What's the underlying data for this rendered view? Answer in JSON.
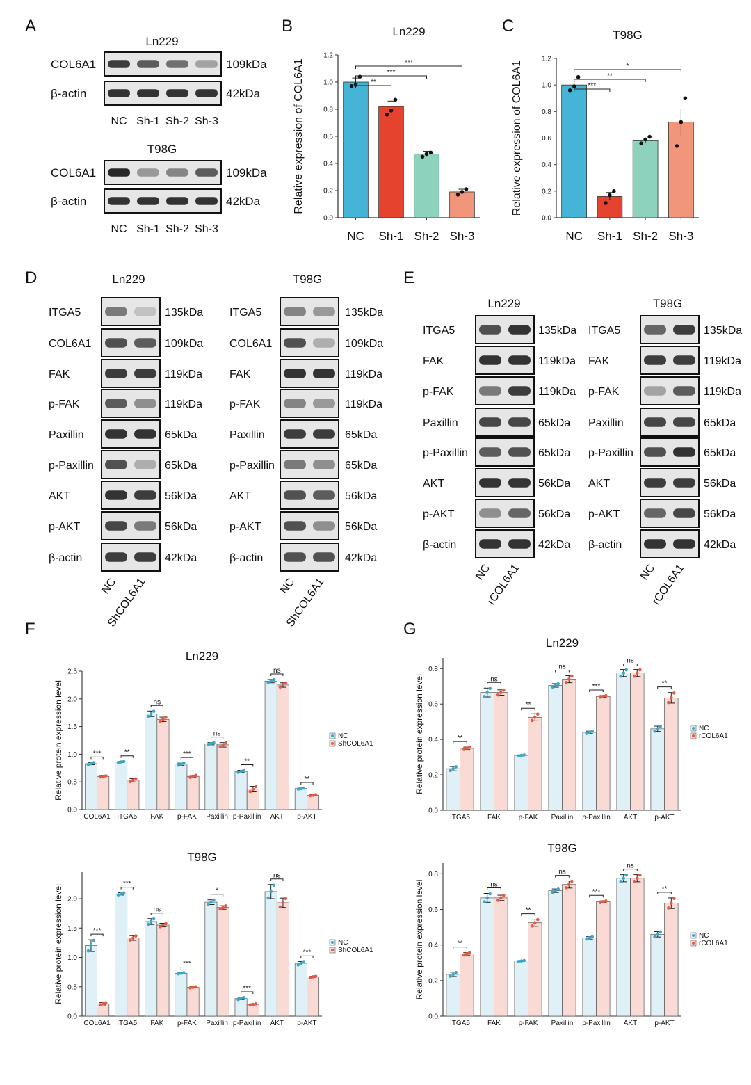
{
  "colors": {
    "nc": "#44b5d6",
    "sh1": "#e5432e",
    "sh2": "#8dd2bd",
    "sh3": "#f2967b",
    "nc_light": "#dff0f6",
    "nc_dot": "#3aa7c9",
    "treat_light": "#f9dad4",
    "treat_dot": "#e25a45",
    "axis": "#333333",
    "band": "#1e1e1e"
  },
  "panel_letters": [
    "A",
    "B",
    "C",
    "D",
    "E",
    "F",
    "G"
  ],
  "panel_A": {
    "blots": [
      {
        "cell": "Ln229",
        "rows": [
          {
            "label": "COL6A1",
            "size": "109kDa",
            "bands": [
              0.85,
              0.7,
              0.6,
              0.35
            ]
          },
          {
            "label": "β-actin",
            "size": "42kDa",
            "bands": [
              0.9,
              0.9,
              0.9,
              0.9
            ]
          }
        ],
        "lanes": [
          "NC",
          "Sh-1",
          "Sh-2",
          "Sh-3"
        ]
      },
      {
        "cell": "T98G",
        "rows": [
          {
            "label": "COL6A1",
            "size": "109kDa",
            "bands": [
              0.95,
              0.4,
              0.5,
              0.7
            ]
          },
          {
            "label": "β-actin",
            "size": "42kDa",
            "bands": [
              0.9,
              0.9,
              0.9,
              0.9
            ]
          }
        ],
        "lanes": [
          "NC",
          "Sh-1",
          "Sh-2",
          "Sh-3"
        ]
      }
    ]
  },
  "panel_D": {
    "rows": [
      "ITGA5",
      "COL6A1",
      "FAK",
      "p-FAK",
      "Paxillin",
      "p-Paxillin",
      "AKT",
      "p-AKT",
      "β-actin"
    ],
    "sizes": [
      "135kDa",
      "109kDa",
      "119kDa",
      "119kDa",
      "65kDa",
      "65kDa",
      "56kDa",
      "56kDa",
      "42kDa"
    ],
    "lanes": [
      "NC",
      "ShCOL6A1"
    ],
    "blots": [
      {
        "cell": "Ln229",
        "bands": [
          [
            0.55,
            0.2
          ],
          [
            0.75,
            0.7
          ],
          [
            0.85,
            0.85
          ],
          [
            0.7,
            0.45
          ],
          [
            0.9,
            0.9
          ],
          [
            0.75,
            0.3
          ],
          [
            0.9,
            0.85
          ],
          [
            0.8,
            0.55
          ],
          [
            0.85,
            0.85
          ]
        ]
      },
      {
        "cell": "T98G",
        "bands": [
          [
            0.5,
            0.4
          ],
          [
            0.75,
            0.3
          ],
          [
            0.9,
            0.9
          ],
          [
            0.5,
            0.4
          ],
          [
            0.85,
            0.85
          ],
          [
            0.55,
            0.45
          ],
          [
            0.75,
            0.7
          ],
          [
            0.75,
            0.45
          ],
          [
            0.75,
            0.75
          ]
        ]
      }
    ]
  },
  "panel_F": {
    "rows": [
      "ITGA5",
      "FAK",
      "p-FAK",
      "Paxillin",
      "p-Paxillin",
      "AKT",
      "p-AKT",
      "β-actin"
    ],
    "sizes": [
      "135kDa",
      "119kDa",
      "119kDa",
      "65kDa",
      "65kDa",
      "56kDa",
      "56kDa",
      "42kDa"
    ],
    "lanes": [
      "NC",
      "rCOL6A1"
    ],
    "blots": [
      {
        "cell": "Ln229",
        "bands": [
          [
            0.75,
            0.9
          ],
          [
            0.9,
            0.9
          ],
          [
            0.55,
            0.85
          ],
          [
            0.8,
            0.8
          ],
          [
            0.7,
            0.75
          ],
          [
            0.9,
            0.9
          ],
          [
            0.45,
            0.65
          ],
          [
            0.9,
            0.9
          ]
        ]
      },
      {
        "cell": "T98G",
        "bands": [
          [
            0.65,
            0.85
          ],
          [
            0.85,
            0.85
          ],
          [
            0.35,
            0.7
          ],
          [
            0.8,
            0.8
          ],
          [
            0.75,
            0.9
          ],
          [
            0.85,
            0.85
          ],
          [
            0.65,
            0.8
          ],
          [
            0.9,
            0.9
          ]
        ]
      }
    ]
  },
  "chart_data": [
    {
      "id": "B",
      "type": "bar",
      "title": "Ln229",
      "ylabel": "Relative expression of COL6A1",
      "xlabel": "",
      "categories": [
        "NC",
        "Sh-1",
        "Sh-2",
        "Sh-3"
      ],
      "values": [
        1.0,
        0.82,
        0.47,
        0.19
      ],
      "errors": [
        0.03,
        0.04,
        0.02,
        0.02
      ],
      "points": [
        [
          0.97,
          0.98,
          1.04
        ],
        [
          0.76,
          0.79,
          0.87
        ],
        [
          0.45,
          0.47,
          0.48
        ],
        [
          0.17,
          0.19,
          0.21
        ]
      ],
      "ylim": [
        0,
        1.2
      ],
      "yticks": [
        0.0,
        0.2,
        0.4,
        0.6,
        0.8,
        1.0,
        1.2
      ],
      "brackets": [
        {
          "from": 0,
          "to": 1,
          "label": "**"
        },
        {
          "from": 0,
          "to": 2,
          "label": "***"
        },
        {
          "from": 0,
          "to": 3,
          "label": "***"
        }
      ]
    },
    {
      "id": "C",
      "type": "bar",
      "title": "T98G",
      "ylabel": "Relative expression of COL6A1",
      "xlabel": "",
      "categories": [
        "NC",
        "Sh-1",
        "Sh-2",
        "Sh-3"
      ],
      "values": [
        1.0,
        0.16,
        0.58,
        0.72
      ],
      "errors": [
        0.03,
        0.03,
        0.02,
        0.1
      ],
      "points": [
        [
          0.96,
          0.99,
          1.06
        ],
        [
          0.11,
          0.17,
          0.2
        ],
        [
          0.56,
          0.59,
          0.61
        ],
        [
          0.54,
          0.72,
          0.9
        ]
      ],
      "ylim": [
        0,
        1.2
      ],
      "yticks": [
        0.0,
        0.2,
        0.4,
        0.6,
        0.8,
        1.0,
        1.2
      ],
      "brackets": [
        {
          "from": 0,
          "to": 1,
          "label": "***"
        },
        {
          "from": 0,
          "to": 2,
          "label": "**"
        },
        {
          "from": 0,
          "to": 3,
          "label": "*"
        }
      ]
    },
    {
      "id": "E1",
      "type": "bar",
      "title": "Ln229",
      "ylabel": "Relative protein expression level",
      "xlabel": "",
      "categories": [
        "COL6A1",
        "ITGA5",
        "FAK",
        "p-FAK",
        "Paxillin",
        "p-Paxillin",
        "AKT",
        "p-AKT"
      ],
      "series": [
        {
          "name": "NC",
          "values": [
            0.83,
            0.86,
            1.73,
            0.82,
            1.19,
            0.69,
            2.32,
            0.38
          ],
          "errors": [
            0.02,
            0.01,
            0.05,
            0.02,
            0.02,
            0.02,
            0.03,
            0.01
          ]
        },
        {
          "name": "ShCOL6A1",
          "values": [
            0.6,
            0.53,
            1.63,
            0.6,
            1.17,
            0.37,
            2.25,
            0.26
          ],
          "errors": [
            0.01,
            0.03,
            0.04,
            0.02,
            0.04,
            0.05,
            0.04,
            0.01
          ]
        }
      ],
      "ylim": [
        0,
        2.5
      ],
      "yticks": [
        0.0,
        0.5,
        1.0,
        1.5,
        2.0,
        2.5
      ],
      "sig": [
        "***",
        "**",
        "ns",
        "***",
        "ns",
        "**",
        "ns",
        "**"
      ]
    },
    {
      "id": "E2",
      "type": "bar",
      "title": "T98G",
      "ylabel": "Relative protein expression level",
      "xlabel": "",
      "categories": [
        "COL6A1",
        "ITGA5",
        "FAK",
        "p-FAK",
        "Paxillin",
        "p-Paxillin",
        "AKT",
        "p-AKT"
      ],
      "series": [
        {
          "name": "NC",
          "values": [
            1.2,
            2.08,
            1.61,
            0.73,
            1.94,
            0.3,
            2.12,
            0.9
          ],
          "errors": [
            0.1,
            0.02,
            0.05,
            0.01,
            0.04,
            0.02,
            0.12,
            0.03
          ]
        },
        {
          "name": "ShCOL6A1",
          "values": [
            0.21,
            1.33,
            1.55,
            0.49,
            1.85,
            0.2,
            1.93,
            0.67
          ],
          "errors": [
            0.02,
            0.04,
            0.03,
            0.01,
            0.03,
            0.01,
            0.08,
            0.01
          ]
        }
      ],
      "ylim": [
        0,
        2.45
      ],
      "yticks": [
        0.0,
        0.5,
        1.0,
        1.5,
        2.0
      ],
      "sig": [
        "***",
        "***",
        "ns",
        "***",
        "*",
        "***",
        "ns",
        "***"
      ]
    },
    {
      "id": "G1",
      "type": "bar",
      "title": "Ln229",
      "ylabel": "Relative protein expression level",
      "xlabel": "",
      "categories": [
        "ITGA5",
        "FAK",
        "p-FAK",
        "Paxillin",
        "p-Paxillin",
        "AKT",
        "p-AKT"
      ],
      "series": [
        {
          "name": "NC",
          "values": [
            0.235,
            0.665,
            0.31,
            0.705,
            0.44,
            0.775,
            0.46
          ],
          "errors": [
            0.012,
            0.025,
            0.003,
            0.01,
            0.007,
            0.02,
            0.015
          ]
        },
        {
          "name": "rCOL6A1",
          "values": [
            0.35,
            0.665,
            0.525,
            0.74,
            0.643,
            0.775,
            0.635
          ],
          "errors": [
            0.007,
            0.015,
            0.02,
            0.02,
            0.005,
            0.02,
            0.03
          ]
        }
      ],
      "ylim": [
        0,
        0.86
      ],
      "yticks": [
        0.0,
        0.2,
        0.4,
        0.6,
        0.8
      ],
      "sig": [
        "**",
        "ns",
        "**",
        "ns",
        "***",
        "ns",
        "**"
      ]
    },
    {
      "id": "G2",
      "type": "bar",
      "title": "T98G",
      "ylabel": "Relative protein expression level",
      "xlabel": "",
      "categories": [
        "ITGA5",
        "FAK",
        "p-FAK",
        "Paxillin",
        "p-Paxillin",
        "AKT",
        "p-AKT"
      ],
      "series": [
        {
          "name": "NC",
          "values": [
            0.235,
            0.665,
            0.31,
            0.705,
            0.44,
            0.775,
            0.46
          ],
          "errors": [
            0.012,
            0.025,
            0.003,
            0.01,
            0.007,
            0.02,
            0.015
          ]
        },
        {
          "name": "rCOL6A1",
          "values": [
            0.35,
            0.665,
            0.525,
            0.74,
            0.643,
            0.775,
            0.635
          ],
          "errors": [
            0.007,
            0.015,
            0.02,
            0.02,
            0.005,
            0.02,
            0.03
          ]
        }
      ],
      "ylim": [
        0,
        0.86
      ],
      "yticks": [
        0.0,
        0.2,
        0.4,
        0.6,
        0.8
      ],
      "sig": [
        "**",
        "ns",
        "**",
        "ns",
        "***",
        "ns",
        "**"
      ]
    }
  ]
}
